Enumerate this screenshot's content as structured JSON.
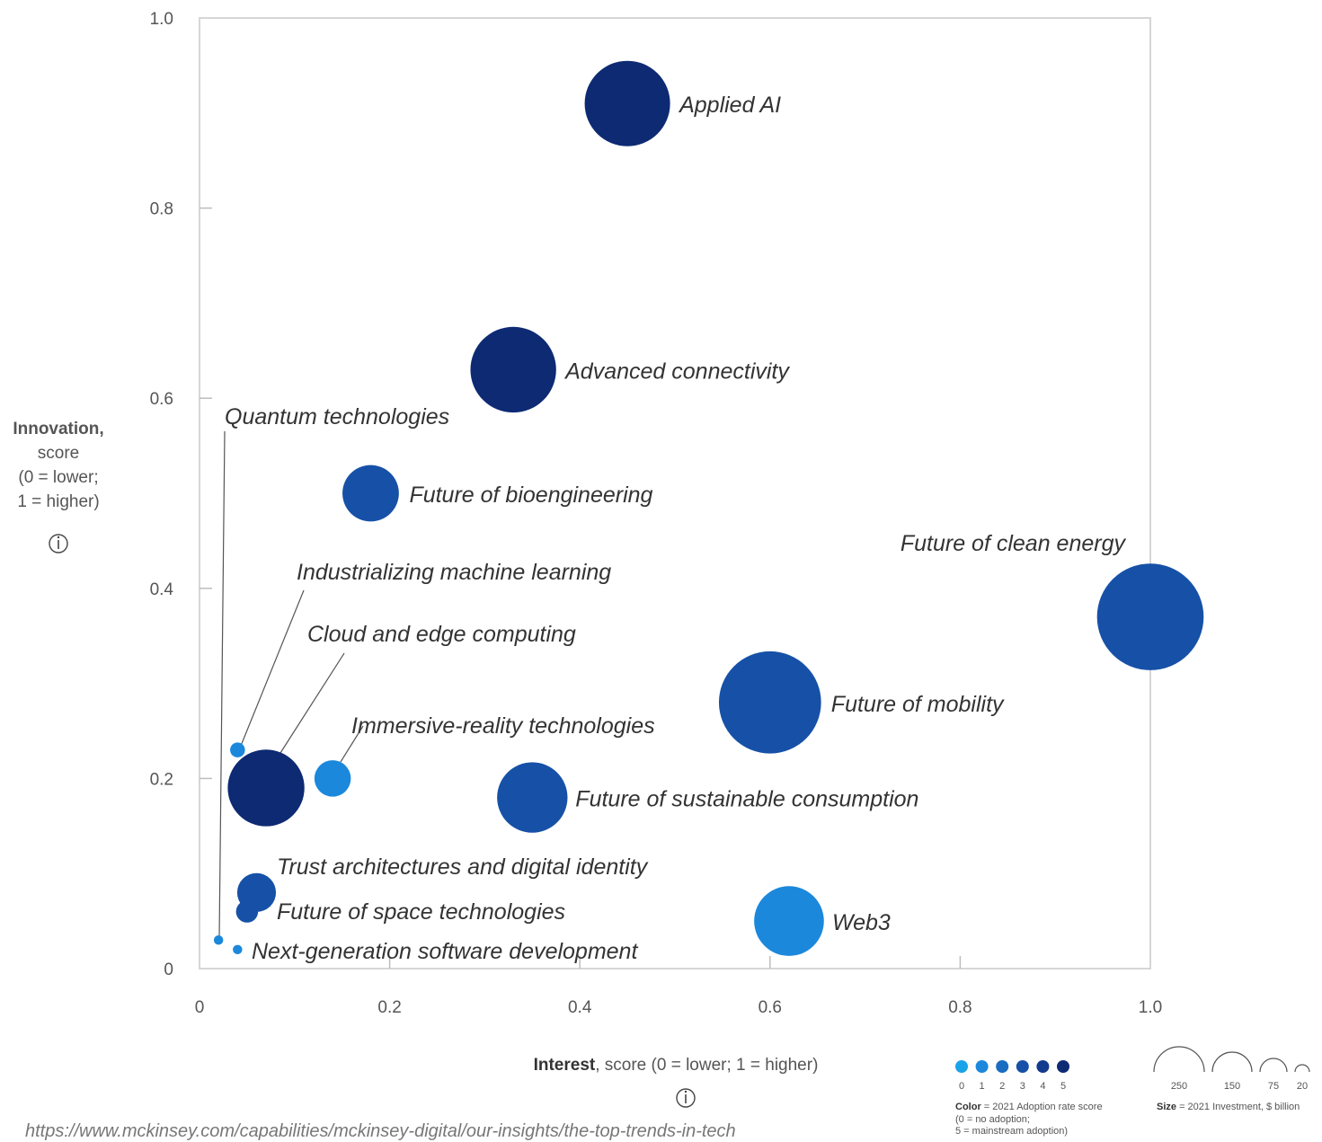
{
  "chart_data": {
    "type": "scatter",
    "subtype": "bubble",
    "x_axis": {
      "label_bold": "Interest",
      "label_rest": ", score (0 = lower; 1 = higher)",
      "range": [
        0,
        1.0
      ],
      "ticks": [
        "0",
        "0.2",
        "0.4",
        "0.6",
        "0.8",
        "1.0"
      ]
    },
    "y_axis": {
      "label_lines": [
        "Innovation,",
        "score",
        "(0 = lower;",
        "1 = higher)"
      ],
      "range": [
        0,
        1.0
      ],
      "ticks": [
        "0",
        "0.2",
        "0.4",
        "0.6",
        "0.8",
        "1.0"
      ]
    },
    "grid": false,
    "points": [
      {
        "name": "Applied AI",
        "x": 0.45,
        "y": 0.91,
        "adoption": 5,
        "investment": 165
      },
      {
        "name": "Advanced connectivity",
        "x": 0.33,
        "y": 0.63,
        "adoption": 5,
        "investment": 166
      },
      {
        "name": "Quantum technologies",
        "x": 0.02,
        "y": 0.03,
        "adoption": 1,
        "investment": 2
      },
      {
        "name": "Future of bioengineering",
        "x": 0.18,
        "y": 0.5,
        "adoption": 3,
        "investment": 72
      },
      {
        "name": "Future of clean energy",
        "x": 1.0,
        "y": 0.37,
        "adoption": 3,
        "investment": 257
      },
      {
        "name": "Industrializing machine learning",
        "x": 0.04,
        "y": 0.23,
        "adoption": 1,
        "investment": 5
      },
      {
        "name": "Cloud and edge computing",
        "x": 0.07,
        "y": 0.19,
        "adoption": 5,
        "investment": 133
      },
      {
        "name": "Future of mobility",
        "x": 0.6,
        "y": 0.28,
        "adoption": 3,
        "investment": 236
      },
      {
        "name": "Immersive-reality technologies",
        "x": 0.14,
        "y": 0.2,
        "adoption": 1,
        "investment": 30
      },
      {
        "name": "Future of sustainable consumption",
        "x": 0.35,
        "y": 0.18,
        "adoption": 3,
        "investment": 112
      },
      {
        "name": "Trust architectures and digital identity",
        "x": 0.06,
        "y": 0.08,
        "adoption": 3,
        "investment": 34
      },
      {
        "name": "Future of space technologies",
        "x": 0.05,
        "y": 0.06,
        "adoption": 3,
        "investment": 11
      },
      {
        "name": "Next-generation software development",
        "x": 0.04,
        "y": 0.02,
        "adoption": 1,
        "investment": 2
      },
      {
        "name": "Web3",
        "x": 0.62,
        "y": 0.05,
        "adoption": 1,
        "investment": 110
      }
    ],
    "color_legend": {
      "steps": [
        "0",
        "1",
        "2",
        "3",
        "4",
        "5"
      ],
      "colors": [
        "#1aa3e8",
        "#1b88dc",
        "#1a6cc0",
        "#1651a7",
        "#123a8d",
        "#0d2a73"
      ],
      "title_bold": "Color",
      "title_rest": " = 2021 Adoption rate score",
      "note_lines": [
        "(0 = no adoption;",
        "5 = mainstream adoption)"
      ]
    },
    "size_legend": {
      "values": [
        "250",
        "150",
        "75",
        "20"
      ],
      "title_bold": "Size",
      "title_rest": " = 2021 Investment, $ billion"
    }
  },
  "source": "https://www.mckinsey.com/capabilities/mckinsey-digital/our-insights/the-top-trends-in-tech"
}
